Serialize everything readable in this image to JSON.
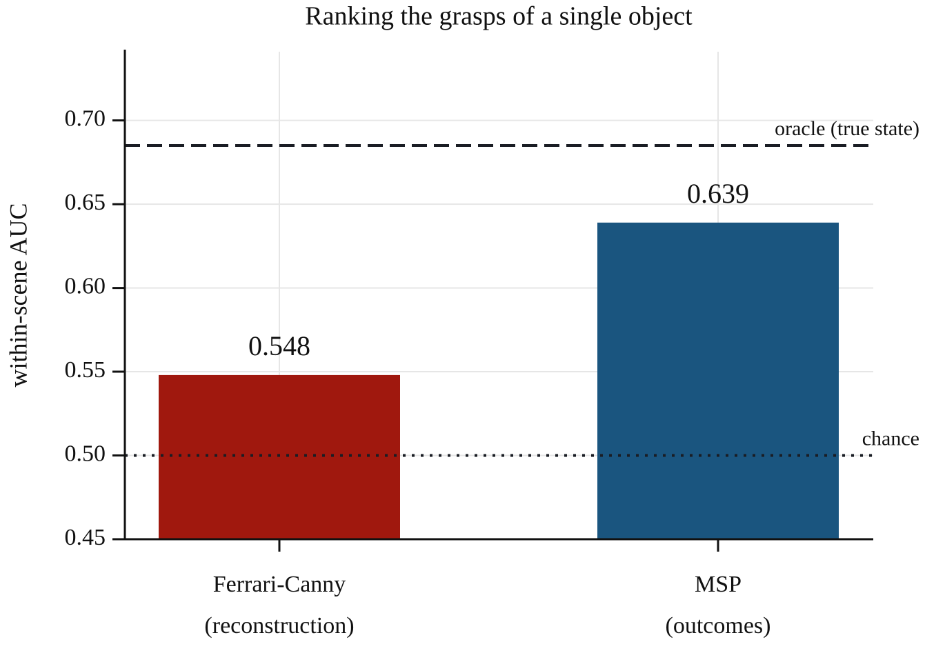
{
  "chart_data": {
    "type": "bar",
    "title": "Ranking the grasps of a single object",
    "y_label": "within-scene AUC",
    "categories": [
      "Ferrari-Canny\n(reconstruction)",
      "MSP\n(outcomes)"
    ],
    "values": [
      0.548,
      0.639
    ],
    "colors": [
      "#a0180e",
      "#1a557f"
    ],
    "ylim": [
      0.45,
      0.741
    ],
    "yticks": [
      {
        "value": 0.45,
        "label": "0.45"
      },
      {
        "value": 0.5,
        "label": "0.50"
      },
      {
        "value": 0.55,
        "label": "0.55"
      },
      {
        "value": 0.6,
        "label": "0.60"
      },
      {
        "value": 0.65,
        "label": "0.65"
      },
      {
        "value": 0.7,
        "label": "0.70"
      }
    ],
    "grid": true,
    "reference_lines": [
      {
        "value": 0.685,
        "label": "oracle (true state)",
        "style": "dashed"
      },
      {
        "value": 0.5,
        "label": "chance",
        "style": "dotted"
      }
    ]
  }
}
